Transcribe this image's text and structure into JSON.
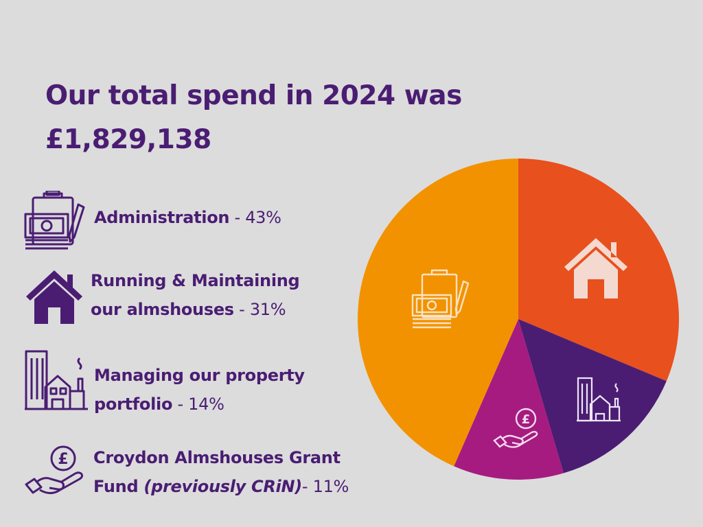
{
  "title": {
    "line1": "Our total spend in 2024 was",
    "line2": "£1,829,138"
  },
  "legend": [
    {
      "label": "Administration",
      "pct": " - 43%",
      "icon": "admin-clipboard-money-icon"
    },
    {
      "label_line1": "Running & Maintaining",
      "label_line2": "our almshouses",
      "pct": " - 31%",
      "icon": "house-icon"
    },
    {
      "label_line1": "Managing our property",
      "label_line2": "portfolio",
      "pct": " - 14%",
      "icon": "property-buildings-icon"
    },
    {
      "label_line1": "Croydon Almshouses Grant",
      "label_line2a": "Fund ",
      "label_line2b": "(previously CRiN)",
      "pct": "- 11%",
      "icon": "hand-pound-coin-icon"
    }
  ],
  "colors": {
    "administration": "#f29200",
    "almshouses": "#e8501e",
    "property": "#4a1d73",
    "grant": "#a61b80",
    "text": "#4a1d73",
    "background": "#dcdcdc"
  },
  "chart_data": {
    "type": "pie",
    "categories": [
      "Running & Maintaining our almshouses",
      "Managing our property portfolio",
      "Croydon Almshouses Grant Fund",
      "Administration"
    ],
    "values": [
      31,
      14,
      11,
      43
    ],
    "unit": "%",
    "total": "£1,829,138",
    "title": "Our total spend in 2024 was £1,829,138"
  }
}
